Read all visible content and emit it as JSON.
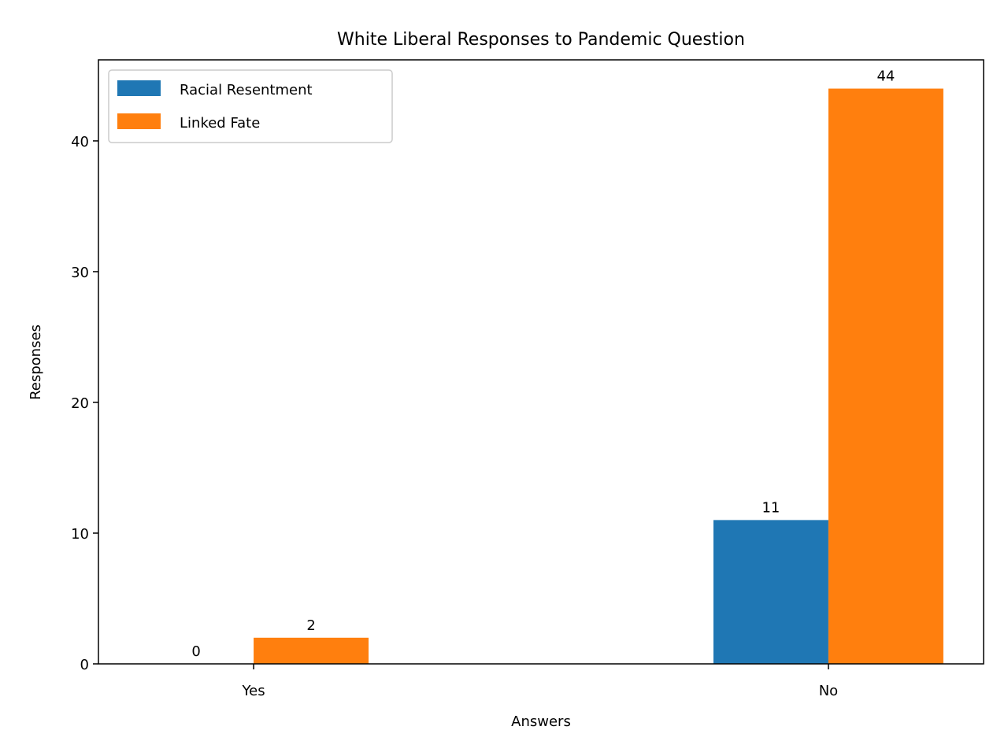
{
  "chart_data": {
    "type": "bar",
    "title": "White Liberal Responses to Pandemic Question",
    "xlabel": "Answers",
    "ylabel": "Responses",
    "categories": [
      "Yes",
      "No"
    ],
    "series": [
      {
        "name": "Racial Resentment",
        "values": [
          0,
          11
        ],
        "color": "#1f77b4"
      },
      {
        "name": "Linked Fate",
        "values": [
          2,
          44
        ],
        "color": "#ff7f0e"
      }
    ],
    "ylim": [
      0,
      46.2
    ],
    "yticks": [
      0,
      10,
      20,
      30,
      40
    ],
    "grid": false,
    "legend_position": "top-left"
  }
}
